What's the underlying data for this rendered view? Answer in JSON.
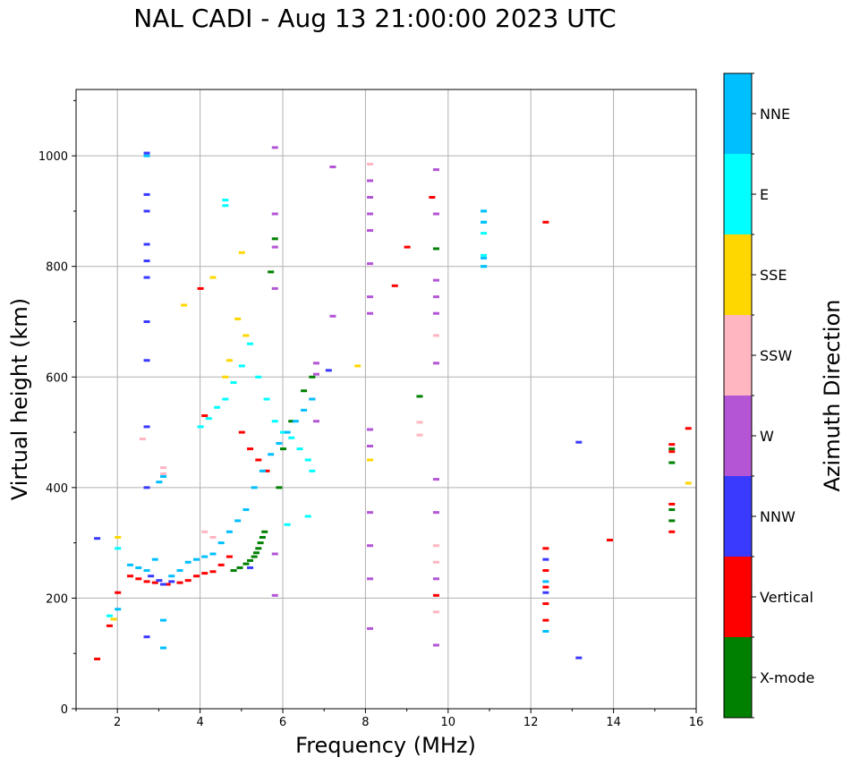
{
  "chart_data": {
    "type": "scatter",
    "title": "NAL CADI - Aug 13 21:00:00 2023 UTC",
    "xlabel": "Frequency (MHz)",
    "ylabel": "Virtual height (km)",
    "xlim": [
      1,
      16
    ],
    "ylim": [
      0,
      1120
    ],
    "xticks": [
      2,
      4,
      6,
      8,
      10,
      12,
      14,
      16
    ],
    "yticks": [
      0,
      200,
      400,
      600,
      800,
      1000
    ],
    "grid": true,
    "colorbar": {
      "label": "Azimuth Direction",
      "categories": [
        {
          "name": "X-mode",
          "color": "#008000"
        },
        {
          "name": "Vertical",
          "color": "#ff0000"
        },
        {
          "name": "NNW",
          "color": "#3a3aff"
        },
        {
          "name": "W",
          "color": "#b455d6"
        },
        {
          "name": "SSW",
          "color": "#ffb6c1"
        },
        {
          "name": "SSE",
          "color": "#ffd700"
        },
        {
          "name": "E",
          "color": "#00ffff"
        },
        {
          "name": "NNE",
          "color": "#00bfff"
        }
      ]
    },
    "series": [
      {
        "name": "Vertical",
        "x": [
          1.5,
          1.8,
          2.0,
          2.3,
          2.5,
          2.7,
          2.9,
          3.2,
          3.5,
          3.7,
          3.9,
          4.1,
          4.3,
          4.5,
          4.7,
          4.0,
          4.1,
          5.0,
          5.2,
          5.4,
          5.6,
          6.7,
          8.7,
          9.0,
          9.6,
          9.7,
          12.35,
          12.35,
          12.35,
          12.35,
          12.35,
          12.35,
          13.9,
          15.4,
          15.4,
          15.4,
          15.4,
          15.8
        ],
        "y": [
          90,
          150,
          210,
          240,
          235,
          230,
          228,
          225,
          228,
          232,
          240,
          245,
          248,
          260,
          275,
          760,
          530,
          500,
          470,
          450,
          430,
          560,
          765,
          835,
          925,
          205,
          290,
          250,
          220,
          190,
          160,
          880,
          305,
          320,
          370,
          465,
          478,
          507
        ]
      },
      {
        "name": "X-mode",
        "x": [
          4.8,
          4.95,
          5.1,
          5.2,
          5.3,
          5.35,
          5.4,
          5.45,
          5.5,
          5.55,
          5.7,
          5.8,
          5.9,
          6.0,
          6.2,
          6.5,
          6.7,
          9.3,
          9.7,
          15.4,
          15.4,
          15.4,
          15.4
        ],
        "y": [
          250,
          255,
          262,
          268,
          275,
          282,
          290,
          300,
          310,
          320,
          790,
          850,
          400,
          470,
          520,
          575,
          600,
          565,
          832,
          445,
          340,
          360,
          470
        ]
      },
      {
        "name": "NNW",
        "x": [
          1.5,
          2.7,
          2.7,
          2.7,
          2.7,
          2.7,
          2.7,
          2.7,
          2.7,
          2.7,
          2.7,
          2.7,
          3.1,
          3.3,
          7.1,
          13.15,
          13.15,
          12.35,
          12.35,
          3.0,
          2.8,
          5.2
        ],
        "y": [
          308,
          1005,
          930,
          900,
          840,
          810,
          780,
          700,
          630,
          510,
          400,
          130,
          225,
          230,
          612,
          482,
          92,
          270,
          210,
          232,
          240,
          255
        ]
      },
      {
        "name": "W",
        "x": [
          8.1,
          8.1,
          8.1,
          8.1,
          8.1,
          8.1,
          8.1,
          8.1,
          8.1,
          8.1,
          8.1,
          8.1,
          8.1,
          9.7,
          9.7,
          9.7,
          9.7,
          9.7,
          9.7,
          9.7,
          9.7,
          9.7,
          9.7,
          7.2,
          7.2,
          6.8,
          6.8,
          6.8,
          5.8,
          5.8,
          5.8,
          5.8,
          5.8,
          5.8
        ],
        "y": [
          955,
          925,
          895,
          865,
          805,
          745,
          715,
          505,
          475,
          355,
          295,
          235,
          145,
          975,
          895,
          775,
          745,
          715,
          625,
          415,
          355,
          235,
          115,
          980,
          710,
          625,
          605,
          520,
          1015,
          895,
          835,
          760,
          280,
          205
        ]
      },
      {
        "name": "SSW",
        "x": [
          8.1,
          9.3,
          9.3,
          9.7,
          9.7,
          9.7,
          2.6,
          3.1,
          3.1,
          4.1,
          4.3,
          9.7
        ],
        "y": [
          985,
          518,
          495,
          295,
          265,
          175,
          488,
          436,
          425,
          320,
          310,
          675
        ]
      },
      {
        "name": "SSE",
        "x": [
          1.9,
          2.0,
          3.6,
          4.3,
          4.7,
          4.9,
          5.0,
          5.1,
          7.8,
          15.8,
          8.1,
          4.6
        ],
        "y": [
          162,
          310,
          730,
          780,
          630,
          705,
          825,
          675,
          620,
          408,
          450,
          600
        ]
      },
      {
        "name": "E",
        "x": [
          1.8,
          2.0,
          4.0,
          4.2,
          4.4,
          4.6,
          4.8,
          5.0,
          5.2,
          5.4,
          5.6,
          5.8,
          6.0,
          6.2,
          6.4,
          6.6,
          6.7,
          6.6,
          6.1,
          4.6,
          4.6,
          10.85,
          10.85,
          10.85,
          10.85,
          10.85
        ],
        "y": [
          168,
          290,
          510,
          525,
          545,
          560,
          590,
          620,
          660,
          600,
          560,
          520,
          500,
          490,
          470,
          450,
          430,
          348,
          333,
          920,
          910,
          900,
          880,
          860,
          820,
          800
        ]
      },
      {
        "name": "NNE",
        "x": [
          2.0,
          2.3,
          2.5,
          2.7,
          2.9,
          3.0,
          3.1,
          3.3,
          3.5,
          3.7,
          3.9,
          4.1,
          4.3,
          4.5,
          4.7,
          4.9,
          5.1,
          5.3,
          5.5,
          5.7,
          5.9,
          6.1,
          6.3,
          6.5,
          6.7,
          3.1,
          3.1,
          10.85,
          10.85,
          10.85,
          10.85,
          12.35,
          12.35,
          2.7
        ],
        "y": [
          180,
          260,
          255,
          250,
          270,
          410,
          420,
          240,
          250,
          265,
          270,
          275,
          280,
          300,
          320,
          340,
          360,
          400,
          430,
          460,
          480,
          500,
          520,
          540,
          560,
          160,
          110,
          900,
          880,
          815,
          800,
          140,
          230,
          1000
        ]
      }
    ]
  }
}
